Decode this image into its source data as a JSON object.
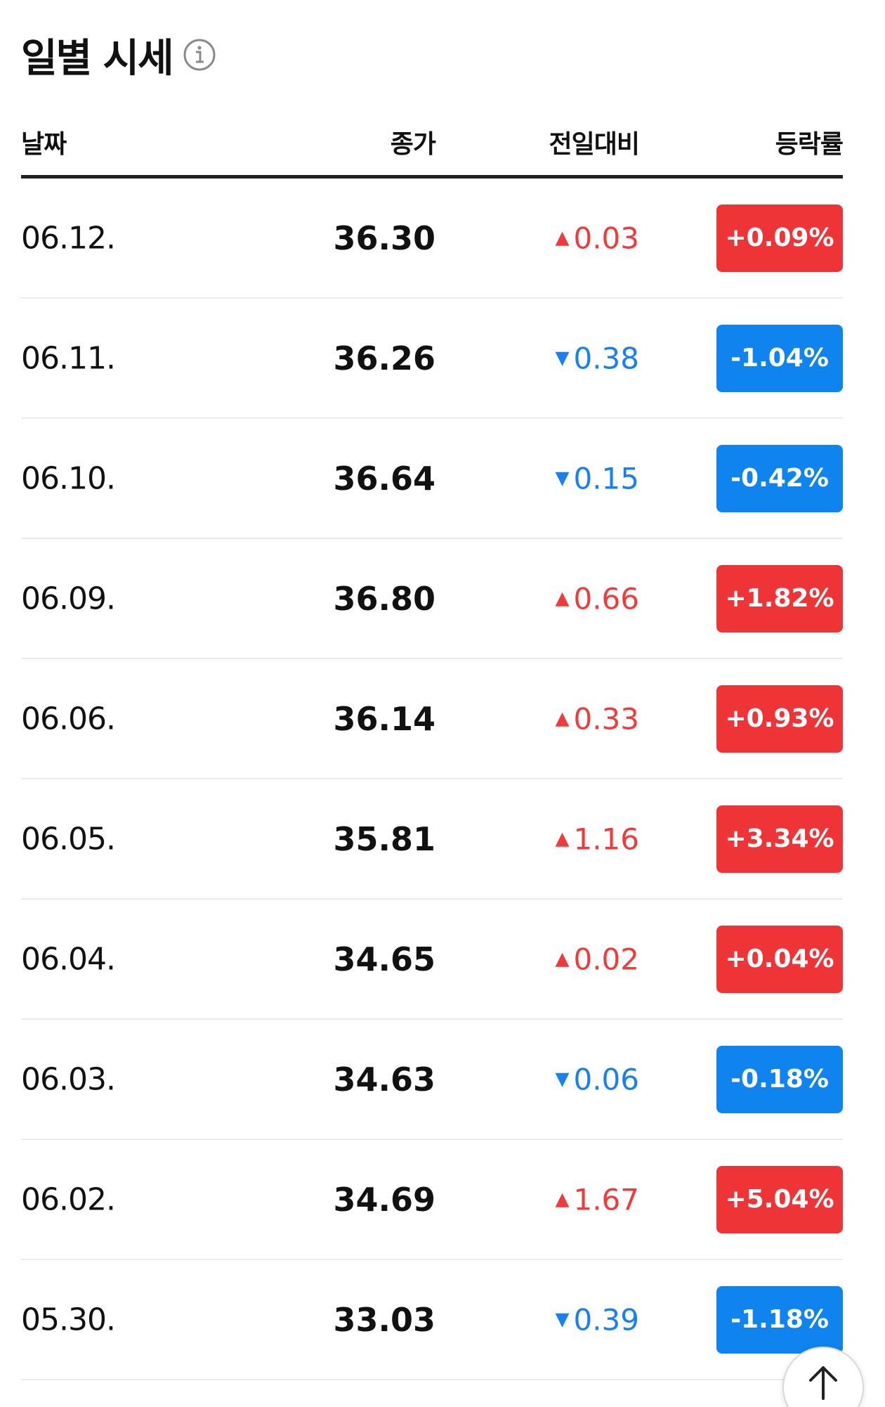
{
  "header": {
    "title": "일별 시세",
    "info_icon": "info-icon"
  },
  "table": {
    "columns": {
      "date": "날짜",
      "close": "종가",
      "change": "전일대비",
      "rate": "등락률"
    },
    "rows": [
      {
        "date": "06.12.",
        "close": "36.30",
        "direction": "up",
        "arrow": "▲",
        "change": "0.03",
        "rate": "+0.09%"
      },
      {
        "date": "06.11.",
        "close": "36.26",
        "direction": "down",
        "arrow": "▼",
        "change": "0.38",
        "rate": "-1.04%"
      },
      {
        "date": "06.10.",
        "close": "36.64",
        "direction": "down",
        "arrow": "▼",
        "change": "0.15",
        "rate": "-0.42%"
      },
      {
        "date": "06.09.",
        "close": "36.80",
        "direction": "up",
        "arrow": "▲",
        "change": "0.66",
        "rate": "+1.82%"
      },
      {
        "date": "06.06.",
        "close": "36.14",
        "direction": "up",
        "arrow": "▲",
        "change": "0.33",
        "rate": "+0.93%"
      },
      {
        "date": "06.05.",
        "close": "35.81",
        "direction": "up",
        "arrow": "▲",
        "change": "1.16",
        "rate": "+3.34%"
      },
      {
        "date": "06.04.",
        "close": "34.65",
        "direction": "up",
        "arrow": "▲",
        "change": "0.02",
        "rate": "+0.04%"
      },
      {
        "date": "06.03.",
        "close": "34.63",
        "direction": "down",
        "arrow": "▼",
        "change": "0.06",
        "rate": "-0.18%"
      },
      {
        "date": "06.02.",
        "close": "34.69",
        "direction": "up",
        "arrow": "▲",
        "change": "1.67",
        "rate": "+5.04%"
      },
      {
        "date": "05.30.",
        "close": "33.03",
        "direction": "down",
        "arrow": "▼",
        "change": "0.39",
        "rate": "-1.18%"
      }
    ]
  },
  "colors": {
    "up": "#ef3438",
    "down": "#0f83ee",
    "text": "#111111",
    "divider": "#ebebeb"
  },
  "scroll_top_button": {
    "icon": "arrow-up-icon"
  }
}
